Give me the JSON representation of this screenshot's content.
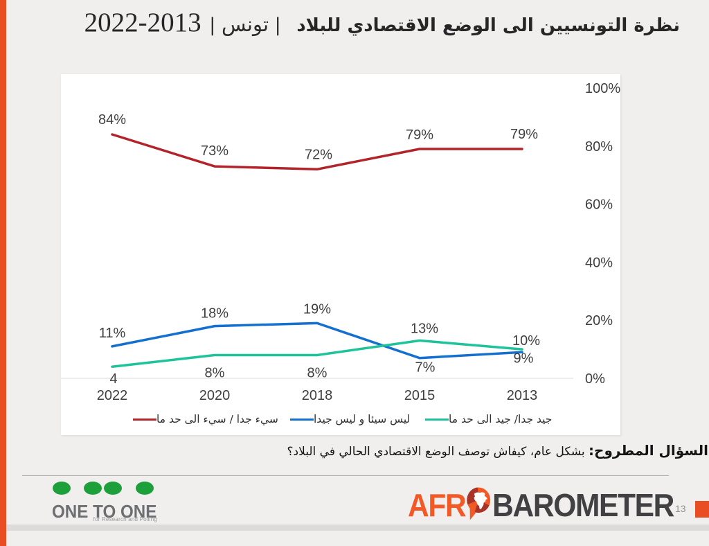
{
  "slide": {
    "title": {
      "main": "نظرة التونسيين الى الوضع الاقتصادي للبلاد",
      "separator_left": " | ",
      "region": "تونس",
      "separator_right": " | ",
      "years": "2022-2013"
    },
    "question": {
      "lead_bold": "السؤال المطروح:",
      "text": " بشكل عام، كيفاش توصف الوضع الاقتصادي الحالي في البلاد؟"
    }
  },
  "chart_data": {
    "type": "line",
    "categories": [
      "2022",
      "2020",
      "2018",
      "2015",
      "2013"
    ],
    "series": [
      {
        "name": "سيء جدا / سيء الى حد ما",
        "color": "#b2232a",
        "values": [
          84,
          73,
          72,
          79,
          79
        ],
        "labels": [
          "84%",
          "73%",
          "72%",
          "79%",
          "79%"
        ]
      },
      {
        "name": "ليس سيئا و ليس جيدا",
        "color": "#136fd0",
        "values": [
          11,
          18,
          19,
          7,
          9
        ],
        "labels": [
          "11%",
          "18%",
          "19%",
          "7%",
          "9%"
        ]
      },
      {
        "name": "جيد جدا/ جيد الى حد ما",
        "color": "#1dc39a",
        "values": [
          4,
          8,
          8,
          13,
          10
        ],
        "labels": [
          "4",
          "8%",
          "8%",
          "13%",
          "10%"
        ]
      }
    ],
    "y_axis": {
      "side": "right",
      "min": 0,
      "max": 100,
      "ticks": [
        "0%",
        "20%",
        "40%",
        "60%",
        "80%",
        "100%"
      ]
    },
    "x_axis_gridline_only": true,
    "legend_position": "bottom",
    "text_color": "#3f3f3f",
    "gridline_color": "#d9d9d9"
  },
  "footer": {
    "one_to_one": {
      "name": "ONE TO ONE",
      "tagline": "for Research and Polling",
      "dot_color": "#1da03b"
    },
    "afrobarometer": {
      "part1": "AFR",
      "part2": "BAROMETER",
      "o_colors": {
        "orange": "#f15a27",
        "dark_red": "#a93327",
        "africa": "#ffffff"
      }
    },
    "page_number": "13"
  },
  "colors": {
    "background": "#f0efed",
    "accent_orange": "#e84d24",
    "card": "#ffffff"
  }
}
